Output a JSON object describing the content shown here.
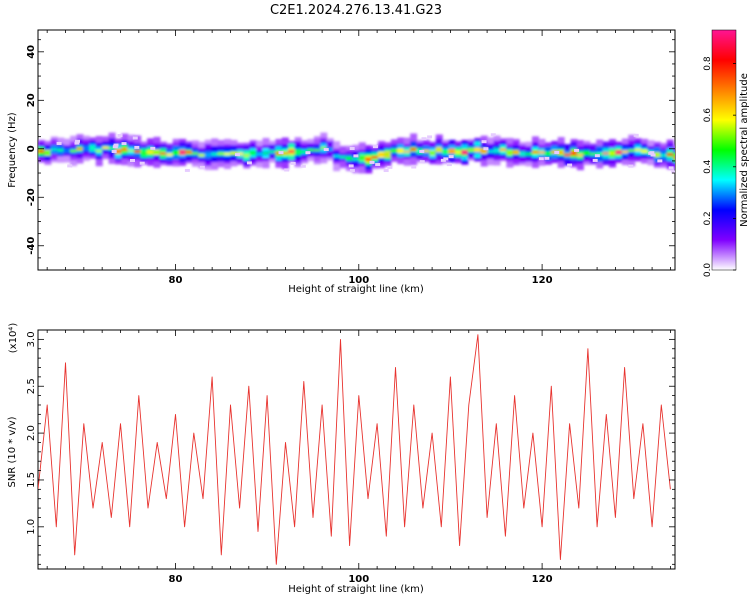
{
  "title": "C2E1.2024.276.13.41.G23",
  "chart_data": [
    {
      "type": "heatmap",
      "xlabel": "Height of straight line (km)",
      "ylabel": "Frequency (Hz)",
      "xlim": [
        65,
        134.5
      ],
      "ylim": [
        -50,
        49
      ],
      "x_ticks": [
        "80",
        "100",
        "120"
      ],
      "x_tick_values": [
        80,
        100,
        120
      ],
      "y_ticks": [
        "40",
        "20",
        "0",
        "-20",
        "-40"
      ],
      "y_tick_values": [
        40,
        20,
        0,
        -20,
        -40
      ],
      "colorbar": {
        "label": "Normalized spectral amplitude",
        "range": [
          0,
          0.93
        ],
        "ticks": [
          "0.0",
          "0.2",
          "0.4",
          "0.6",
          "0.8"
        ],
        "tick_values": [
          0.0,
          0.2,
          0.4,
          0.6,
          0.8
        ],
        "colors": [
          "#ffffff",
          "#8000ff",
          "#0000ff",
          "#00ffff",
          "#00ff00",
          "#ffff00",
          "#ff8000",
          "#ff0000",
          "#ff1493"
        ]
      },
      "band": {
        "x": [
          65,
          68,
          72,
          76,
          80,
          84,
          88,
          92,
          96,
          98,
          101,
          104,
          108,
          112,
          116,
          120,
          124,
          128,
          131,
          133
        ],
        "center_freq": [
          -1,
          -1,
          0,
          -1,
          -2,
          -2,
          -2,
          -2,
          0,
          -4,
          -4,
          -1,
          -1,
          -1,
          -1,
          -2,
          -2,
          -1,
          -1,
          -3
        ],
        "peak_amplitude": [
          0.8,
          0.5,
          0.85,
          0.8,
          0.85,
          0.75,
          0.6,
          0.85,
          0.5,
          0.5,
          0.9,
          0.85,
          0.7,
          0.85,
          0.6,
          0.7,
          0.8,
          0.85,
          0.6,
          0.85
        ]
      },
      "grid": false
    },
    {
      "type": "line",
      "xlabel": "Height of straight line (km)",
      "ylabel": "SNR (10 * v/v)",
      "y_multiplier": "(x10⁴)",
      "xlim": [
        65,
        134.5
      ],
      "ylim": [
        0.55,
        3.1
      ],
      "x_ticks": [
        "80",
        "100",
        "120"
      ],
      "x_tick_values": [
        80,
        100,
        120
      ],
      "y_ticks": [
        "1.0",
        "1.5",
        "2.0",
        "2.5",
        "3.0"
      ],
      "y_tick_values": [
        1.0,
        1.5,
        2.0,
        2.5,
        3.0
      ],
      "series": [
        {
          "color": "#e8332f",
          "x": [
            65,
            66,
            67,
            68,
            69,
            70,
            71,
            72,
            73,
            74,
            75,
            76,
            77,
            78,
            79,
            80,
            81,
            82,
            83,
            84,
            85,
            86,
            87,
            88,
            89,
            90,
            91,
            92,
            93,
            94,
            95,
            96,
            97,
            98,
            99,
            100,
            101,
            102,
            103,
            104,
            105,
            106,
            107,
            108,
            109,
            110,
            111,
            112,
            113,
            114,
            115,
            116,
            117,
            118,
            119,
            120,
            121,
            122,
            123,
            124,
            125,
            126,
            127,
            128,
            129,
            130,
            131,
            132,
            133,
            134
          ],
          "y": [
            1.4,
            2.3,
            1.0,
            2.75,
            0.7,
            2.1,
            1.2,
            1.9,
            1.1,
            2.1,
            1.0,
            2.4,
            1.2,
            1.9,
            1.3,
            2.2,
            1.0,
            2.0,
            1.3,
            2.6,
            0.7,
            2.3,
            1.2,
            2.5,
            0.95,
            2.4,
            0.6,
            1.9,
            1.0,
            2.55,
            1.1,
            2.3,
            0.9,
            3.0,
            0.8,
            2.4,
            1.3,
            2.1,
            0.9,
            2.7,
            1.0,
            2.3,
            1.2,
            2.0,
            1.0,
            2.6,
            0.8,
            2.3,
            3.05,
            1.1,
            2.1,
            0.9,
            2.4,
            1.2,
            2.0,
            1.0,
            2.5,
            0.65,
            2.1,
            1.2,
            2.9,
            1.0,
            2.2,
            1.1,
            2.7,
            1.3,
            2.1,
            1.0,
            2.3,
            1.4
          ]
        }
      ],
      "grid": false
    }
  ]
}
